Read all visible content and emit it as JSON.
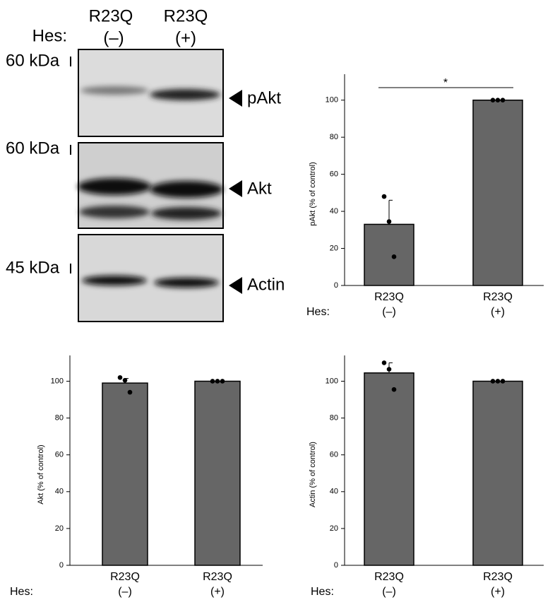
{
  "blot": {
    "row_label": "Hes:",
    "lanes": [
      {
        "name": "R23Q",
        "sign": "(–)"
      },
      {
        "name": "R23Q",
        "sign": "(+)"
      }
    ],
    "panels": [
      {
        "size": "60 kDa",
        "target": "pAkt"
      },
      {
        "size": "60 kDa",
        "target": "Akt"
      },
      {
        "size": "45 kDa",
        "target": "Actin"
      }
    ]
  },
  "chart_data": [
    {
      "type": "bar",
      "ylabel": "pAkt (% of control)",
      "row_label": "Hes:",
      "categories": [
        "R23Q",
        "R23Q"
      ],
      "subcategories": [
        "(–)",
        "(+)"
      ],
      "values": [
        33,
        100
      ],
      "errors": [
        13,
        0
      ],
      "points": [
        [
          48,
          34.5,
          15.5
        ],
        [
          100,
          100,
          100
        ]
      ],
      "annotation": "*",
      "color": "#666666",
      "ylim": [
        0,
        114
      ],
      "yticks": [
        0,
        20,
        40,
        60,
        80,
        100
      ]
    },
    {
      "type": "bar",
      "ylabel": "Akt (% of control)",
      "row_label": "Hes:",
      "categories": [
        "R23Q",
        "R23Q"
      ],
      "subcategories": [
        "(–)",
        "(+)"
      ],
      "values": [
        99,
        100
      ],
      "errors": [
        2.5,
        0
      ],
      "points": [
        [
          102,
          100.5,
          94
        ],
        [
          100,
          100,
          100
        ]
      ],
      "color": "#666666",
      "ylim": [
        0,
        114
      ],
      "yticks": [
        0,
        20,
        40,
        60,
        80,
        100
      ]
    },
    {
      "type": "bar",
      "ylabel": "Actin (% of control)",
      "row_label": "Hes:",
      "categories": [
        "R23Q",
        "R23Q"
      ],
      "subcategories": [
        "(–)",
        "(+)"
      ],
      "values": [
        104.5,
        100
      ],
      "errors": [
        5.5,
        0
      ],
      "points": [
        [
          110,
          106.5,
          95.5
        ],
        [
          100,
          100,
          100
        ]
      ],
      "color": "#666666",
      "ylim": [
        0,
        114
      ],
      "yticks": [
        0,
        20,
        40,
        60,
        80,
        100
      ]
    }
  ]
}
